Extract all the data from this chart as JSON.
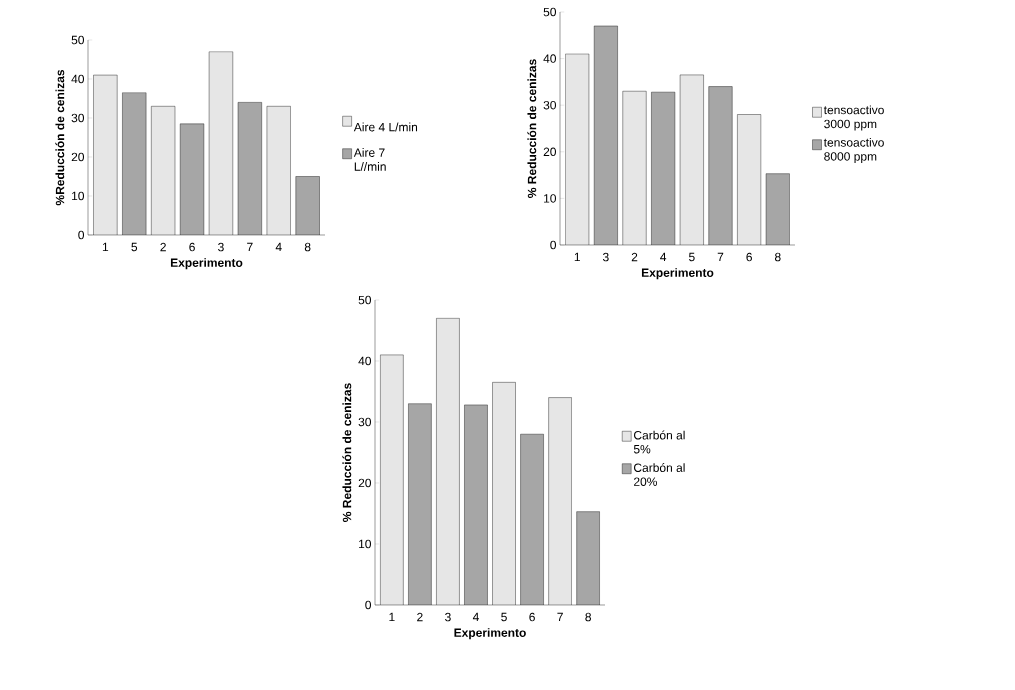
{
  "chart_data": [
    {
      "type": "bar",
      "xlabel": "Experimento",
      "ylabel": "%Reducción de cenizas",
      "categories": [
        "1",
        "5",
        "2",
        "6",
        "3",
        "7",
        "4",
        "8"
      ],
      "ylim": [
        0,
        50
      ],
      "yticks": [
        0,
        10,
        20,
        30,
        40,
        50
      ],
      "legend": "right",
      "series": [
        {
          "name": "Aire 4 L/min",
          "color": "#e6e6e6",
          "values": [
            41,
            null,
            33,
            null,
            47,
            null,
            33,
            null
          ]
        },
        {
          "name": "Aire 7 L//min",
          "color": "#a6a6a6",
          "values": [
            null,
            36.5,
            null,
            28.5,
            null,
            34,
            null,
            15
          ]
        }
      ]
    },
    {
      "type": "bar",
      "xlabel": "Experimento",
      "ylabel": "% Reducción de cenizas",
      "categories": [
        "1",
        "3",
        "2",
        "4",
        "5",
        "7",
        "6",
        "8"
      ],
      "ylim": [
        0,
        50
      ],
      "yticks": [
        0,
        10,
        20,
        30,
        40,
        50
      ],
      "legend": "right",
      "series": [
        {
          "name": "tensoactivo 3000 ppm",
          "color": "#e6e6e6",
          "values": [
            41,
            null,
            33,
            null,
            36.5,
            null,
            28,
            null
          ]
        },
        {
          "name": "tensoactivo 8000 ppm",
          "color": "#a6a6a6",
          "values": [
            null,
            47,
            null,
            32.8,
            null,
            34,
            null,
            15.3
          ]
        }
      ]
    },
    {
      "type": "bar",
      "xlabel": "Experimento",
      "ylabel": "% Reducción de cenizas",
      "categories": [
        "1",
        "2",
        "3",
        "4",
        "5",
        "6",
        "7",
        "8"
      ],
      "ylim": [
        0,
        50
      ],
      "yticks": [
        0,
        10,
        20,
        30,
        40,
        50
      ],
      "legend": "right",
      "series": [
        {
          "name": "Carbón al 5%",
          "color": "#e6e6e6",
          "values": [
            41,
            null,
            47,
            null,
            36.5,
            null,
            34,
            null
          ]
        },
        {
          "name": "Carbón al 20%",
          "color": "#a6a6a6",
          "values": [
            null,
            33,
            null,
            32.8,
            null,
            28,
            null,
            15.3
          ]
        }
      ]
    }
  ]
}
